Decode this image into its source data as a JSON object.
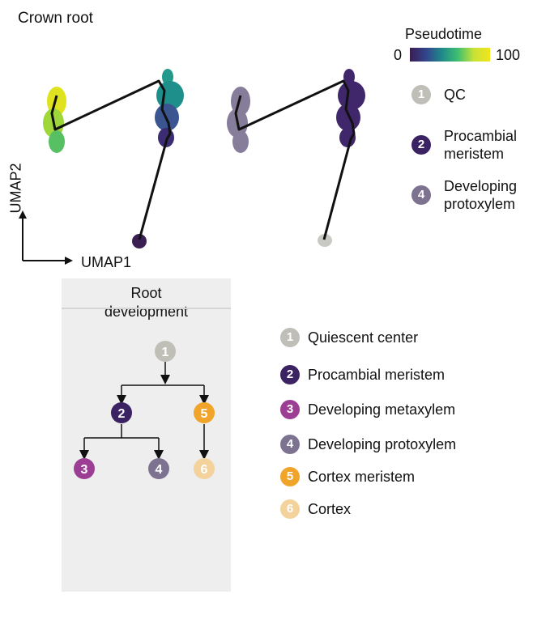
{
  "title": "Crown root",
  "axes": {
    "x_label": "UMAP1",
    "y_label": "UMAP2"
  },
  "pseudotime": {
    "label": "Pseudotime",
    "min": "0",
    "max": "100"
  },
  "umap_legend": [
    {
      "num": "1",
      "label_lines": [
        "QC"
      ],
      "color": "#bfbfb8"
    },
    {
      "num": "2",
      "label_lines": [
        "Procambial",
        "meristem"
      ],
      "color": "#3b2262"
    },
    {
      "num": "4",
      "label_lines": [
        "Developing",
        "protoxylem"
      ],
      "color": "#7d7391"
    }
  ],
  "development": {
    "title_lines": [
      "Root",
      "development"
    ],
    "nodes": [
      {
        "num": "1",
        "color": "#bfbfb8"
      },
      {
        "num": "2",
        "color": "#3b2262"
      },
      {
        "num": "5",
        "color": "#f0a42a"
      },
      {
        "num": "3",
        "color": "#9c3f94"
      },
      {
        "num": "4",
        "color": "#7d7391"
      },
      {
        "num": "6",
        "color": "#f3d39b"
      }
    ]
  },
  "cell_types": [
    {
      "num": "1",
      "label": "Quiescent center",
      "color": "#bfbfb8"
    },
    {
      "num": "2",
      "label": "Procambial meristem",
      "color": "#3b2262"
    },
    {
      "num": "3",
      "label": "Developing metaxylem",
      "color": "#9c3f94"
    },
    {
      "num": "4",
      "label": "Developing protoxylem",
      "color": "#7d7391"
    },
    {
      "num": "5",
      "label": "Cortex meristem",
      "color": "#f0a42a"
    },
    {
      "num": "6",
      "label": "Cortex",
      "color": "#f3d39b"
    }
  ]
}
